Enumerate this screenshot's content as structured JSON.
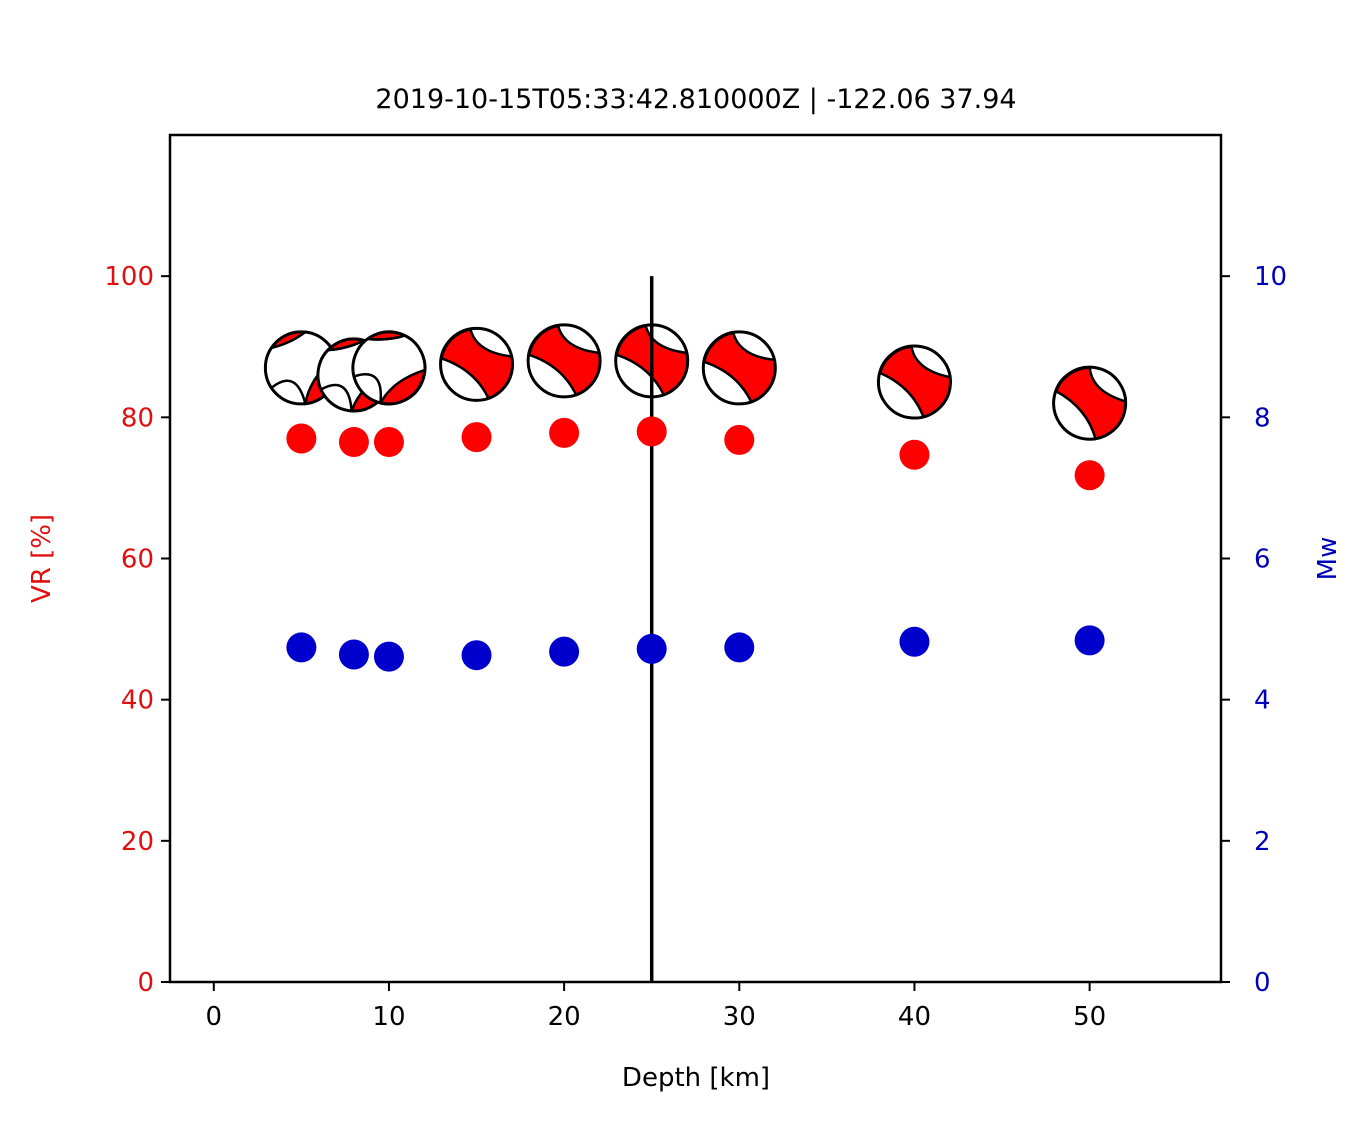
{
  "chart_data": {
    "type": "scatter",
    "title": "2019-10-15T05:33:42.810000Z | -122.06 37.94",
    "xlabel": "Depth [km]",
    "ylabel_left": "VR [%]",
    "ylabel_right": "Mw",
    "xlim": [
      -2.5,
      57.5
    ],
    "ylim_left": [
      0,
      120
    ],
    "ylim_right": [
      0,
      12
    ],
    "x_ticks": [
      0,
      10,
      20,
      30,
      40,
      50
    ],
    "y_ticks_left": [
      0,
      20,
      40,
      60,
      80,
      100
    ],
    "y_ticks_right": [
      0,
      2,
      4,
      6,
      8,
      10
    ],
    "grid": false,
    "colors": {
      "vr": "#ff0000",
      "mw": "#0000cc",
      "left_axis_text": "#e01010",
      "right_axis_text": "#0000bb",
      "beachball_fill": "#ff0000",
      "beachball_outline": "#000000"
    },
    "preferred_depth_line": {
      "x": 25,
      "y_range": [
        0,
        100
      ]
    },
    "series": [
      {
        "name": "VR",
        "axis": "left",
        "x": [
          5,
          8,
          10,
          15,
          20,
          25,
          30,
          40,
          50
        ],
        "values": [
          77,
          76.5,
          76.5,
          77.2,
          77.8,
          78,
          76.8,
          74.7,
          71.8
        ]
      },
      {
        "name": "Mw",
        "axis": "right",
        "x": [
          5,
          8,
          10,
          15,
          20,
          25,
          30,
          40,
          50
        ],
        "values": [
          4.74,
          4.64,
          4.61,
          4.63,
          4.68,
          4.72,
          4.74,
          4.82,
          4.84
        ]
      }
    ],
    "beachballs": [
      {
        "depth": 5,
        "vr": 87,
        "style": "strike-slip",
        "rotation": 0
      },
      {
        "depth": 8,
        "vr": 86,
        "style": "strike-slip",
        "rotation": 10
      },
      {
        "depth": 10,
        "vr": 87,
        "style": "strike-slip",
        "rotation": 20
      },
      {
        "depth": 15,
        "vr": 87.5,
        "style": "oblique",
        "rotation": 0
      },
      {
        "depth": 20,
        "vr": 88,
        "style": "oblique",
        "rotation": 0
      },
      {
        "depth": 25,
        "vr": 88,
        "style": "oblique",
        "rotation": 0
      },
      {
        "depth": 30,
        "vr": 87,
        "style": "oblique",
        "rotation": 0
      },
      {
        "depth": 40,
        "vr": 85,
        "style": "oblique",
        "rotation": 5
      },
      {
        "depth": 50,
        "vr": 82,
        "style": "oblique",
        "rotation": 10
      }
    ]
  }
}
